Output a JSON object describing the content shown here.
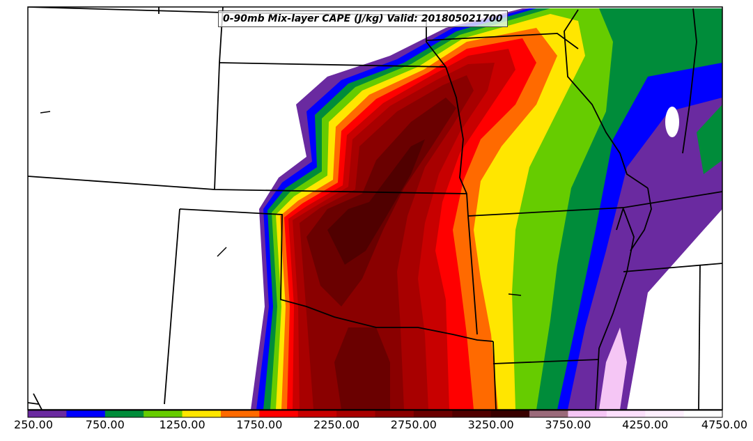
{
  "title": "0-90mb Mix-layer CAPE (J/kg) Valid: 201805021700",
  "colorbar": {
    "colors": [
      "#6a2aa0",
      "#0000ff",
      "#008c3a",
      "#66cc00",
      "#ffe600",
      "#ff6a00",
      "#ff0000",
      "#c80000",
      "#a80000",
      "#8a0000",
      "#6a0000",
      "#500000",
      "#380000",
      "#9a6a7a",
      "#f5c6f5",
      "#fde0fd",
      "#fff0ff",
      "#ffffff"
    ],
    "labels": [
      "250.00",
      "750.00",
      "1250.00",
      "1750.00",
      "2250.00",
      "2750.00",
      "3250.00",
      "3750.00",
      "4250.00",
      "4750.00"
    ]
  },
  "map": {
    "field": "CAPE",
    "units": "J/kg"
  }
}
